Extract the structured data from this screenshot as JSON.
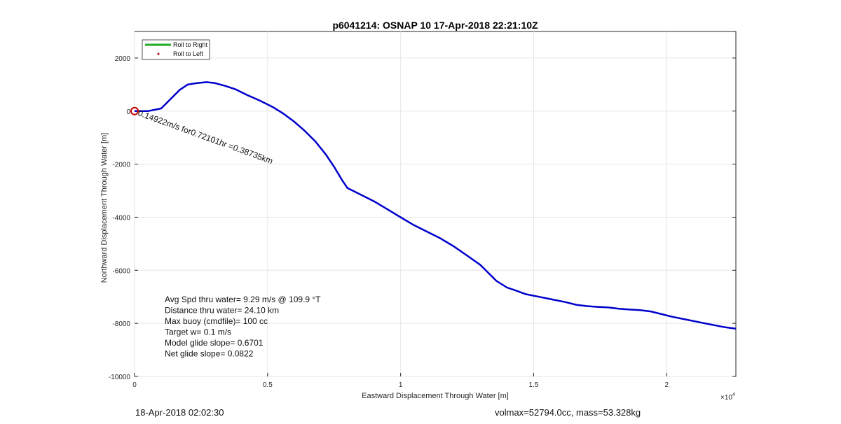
{
  "header": {
    "title": "p6041214: OSNAP 10 17-Apr-2018 22:21:10Z"
  },
  "footer": {
    "left_text": "18-Apr-2018 02:02:30",
    "right_text": "volmax=52794.0cc, mass=53.328kg"
  },
  "chart_data": {
    "type": "line",
    "xlabel": "Eastward Displacement Through Water [m]",
    "ylabel": "Northward Displacement Through Water [m]",
    "xlim": [
      0,
      22600
    ],
    "ylim": [
      -10000,
      3000
    ],
    "x_ticks": [
      0,
      5000,
      10000,
      15000,
      20000
    ],
    "x_tick_labels": [
      "0",
      "0.5",
      "1",
      "1.5",
      "2"
    ],
    "x_exponent_label": "×10",
    "x_exponent_power": "4",
    "y_ticks": [
      2000,
      0,
      -2000,
      -4000,
      -6000,
      -8000,
      -10000
    ],
    "y_tick_labels": [
      "2000",
      "0",
      "-2000",
      "-4000",
      "-6000",
      "-8000",
      "-10000"
    ],
    "grid": true,
    "legend_position": "top-left",
    "legend": [
      {
        "label": "Roll to Right",
        "color": "#22aa22",
        "style": "line"
      },
      {
        "label": "Roll to Left",
        "color": "#cc0000",
        "style": "dot"
      }
    ],
    "series": [
      {
        "color": "#0000cc",
        "x": [
          0,
          500,
          1000,
          1400,
          1700,
          2000,
          2300,
          2700,
          3000,
          3400,
          3800,
          4200,
          4700,
          5200,
          5600,
          6000,
          6400,
          6800,
          7200,
          7500,
          7800,
          8000,
          8300,
          8600,
          9000,
          9500,
          10000,
          10500,
          11000,
          11500,
          12000,
          12500,
          13000,
          13300,
          13600,
          14000,
          14300,
          14700,
          15200,
          15700,
          16200,
          16600,
          17000,
          17400,
          17800,
          18200,
          18600,
          19000,
          19400,
          19800,
          20200,
          20700,
          21200,
          21700,
          22200,
          22600
        ],
        "y": [
          0,
          0,
          100,
          500,
          800,
          1000,
          1050,
          1090,
          1060,
          950,
          820,
          620,
          400,
          150,
          -100,
          -400,
          -750,
          -1150,
          -1650,
          -2100,
          -2600,
          -2900,
          -3050,
          -3200,
          -3400,
          -3700,
          -4000,
          -4300,
          -4550,
          -4800,
          -5100,
          -5450,
          -5800,
          -6100,
          -6400,
          -6650,
          -6750,
          -6900,
          -7000,
          -7100,
          -7200,
          -7300,
          -7350,
          -7380,
          -7400,
          -7450,
          -7480,
          -7500,
          -7550,
          -7650,
          -7750,
          -7850,
          -7950,
          -8050,
          -8150,
          -8200
        ]
      }
    ],
    "annotations": [
      {
        "text": "0.14922m/s for0.72101hr =0.38735km",
        "x": 0,
        "y": 0
      },
      {
        "text": "Avg Spd thru water=  9.29 m/s @ 109.9 °T"
      },
      {
        "text": "Distance thru water= 24.10 km"
      },
      {
        "text": "Max buoy (cmdfile)= 100 cc"
      },
      {
        "text": "Target w= 0.1 m/s"
      },
      {
        "text": "Model glide slope= 0.6701"
      },
      {
        "text": "Net glide slope= 0.0822"
      }
    ]
  }
}
